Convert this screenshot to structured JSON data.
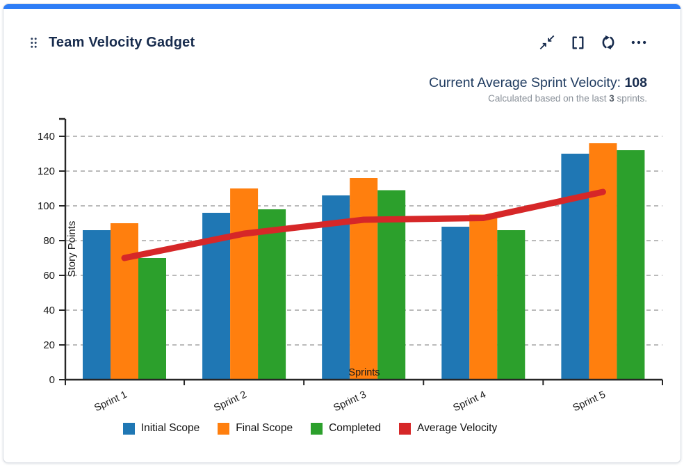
{
  "card": {
    "title": "Team Velocity Gadget",
    "accent_color": "#2e7df6",
    "title_color": "#172b4d",
    "toolbar": {
      "icons": [
        "collapse-icon",
        "fullscreen-icon",
        "refresh-icon",
        "more-icon"
      ]
    },
    "summary": {
      "label": "Current Average Sprint Velocity: ",
      "value": "108",
      "note_prefix": "Calculated based on the last ",
      "note_value": "3",
      "note_suffix": " sprints."
    }
  },
  "chart_data": {
    "type": "bar",
    "categories": [
      "Sprint 1",
      "Sprint 2",
      "Sprint 3",
      "Sprint 4",
      "Sprint 5"
    ],
    "series": [
      {
        "name": "Initial Scope",
        "type": "bar",
        "color": "#1f77b4",
        "values": [
          86,
          96,
          106,
          88,
          130
        ]
      },
      {
        "name": "Final Scope",
        "type": "bar",
        "color": "#ff7f0e",
        "values": [
          90,
          110,
          116,
          95,
          136
        ]
      },
      {
        "name": "Completed",
        "type": "bar",
        "color": "#2ca02c",
        "values": [
          70,
          98,
          109,
          86,
          132
        ]
      },
      {
        "name": "Average Velocity",
        "type": "line",
        "color": "#d62728",
        "values": [
          70,
          84,
          92,
          93,
          108
        ]
      }
    ],
    "title": "",
    "xlabel": "Sprints",
    "ylabel": "Story Points",
    "ylim": [
      0,
      150
    ],
    "yticks": [
      0,
      20,
      40,
      60,
      80,
      100,
      120,
      140
    ],
    "grid": true,
    "legend_position": "bottom"
  }
}
